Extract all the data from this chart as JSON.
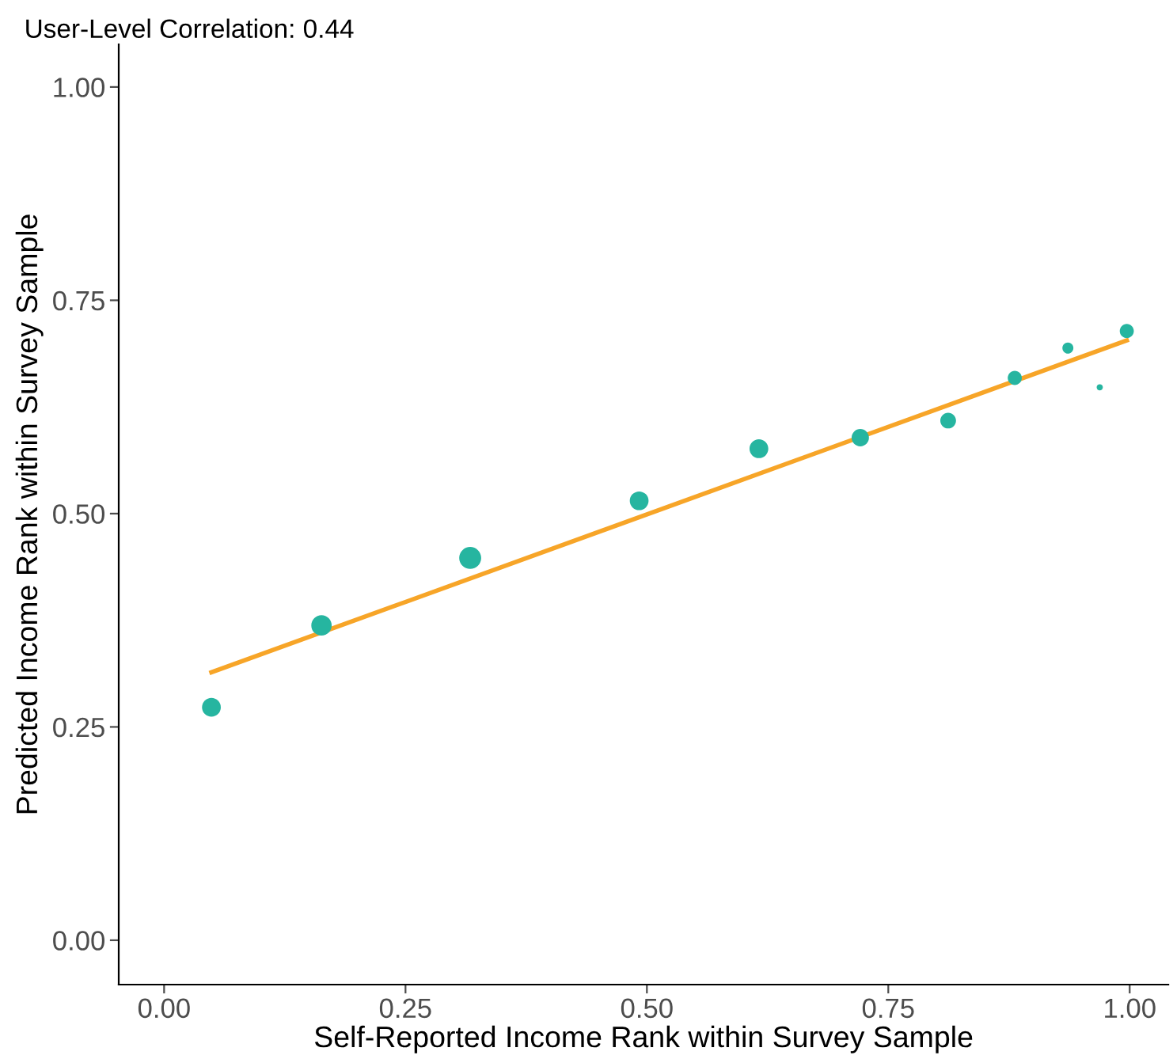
{
  "chart_data": {
    "type": "bubble",
    "title": "User-Level Correlation: 0.44",
    "xlabel": "Self-Reported Income Rank within Survey Sample",
    "ylabel": "Predicted Income Rank within Survey Sample",
    "series": [
      {
        "color": "#26b5a0",
        "x": [
          0.049,
          0.163,
          0.317,
          0.492,
          0.616,
          0.721,
          0.812,
          0.881,
          0.936,
          0.969,
          0.997
        ],
        "values": [
          0.273,
          0.369,
          0.448,
          0.515,
          0.576,
          0.589,
          0.609,
          0.659,
          0.694,
          0.648,
          0.714
        ],
        "sizes": [
          0.73,
          0.86,
          1,
          0.73,
          0.73,
          0.62,
          0.51,
          0.41,
          0.25,
          0.08,
          0.41
        ]
      },
      {
        "type": "line",
        "color": "#f7a528",
        "x": [
          0.049,
          0.997
        ],
        "values": [
          0.314,
          0.703
        ]
      }
    ],
    "xlim": [
      -0.047,
      1.04
    ],
    "ylim": [
      -0.052,
      1.05
    ],
    "xticks": [
      {
        "value": 0,
        "label": "0.00"
      },
      {
        "value": 0.25,
        "label": "0.25"
      },
      {
        "value": 0.5,
        "label": "0.50"
      },
      {
        "value": 0.75,
        "label": "0.75"
      },
      {
        "value": 1,
        "label": "1.00"
      }
    ],
    "yticks": [
      {
        "value": 0,
        "label": "0.00"
      },
      {
        "value": 0.25,
        "label": "0.25"
      },
      {
        "value": 0.5,
        "label": "0.50"
      },
      {
        "value": 0.75,
        "label": "0.75"
      },
      {
        "value": 1,
        "label": "1.00"
      }
    ],
    "grid": false,
    "legend": false
  }
}
